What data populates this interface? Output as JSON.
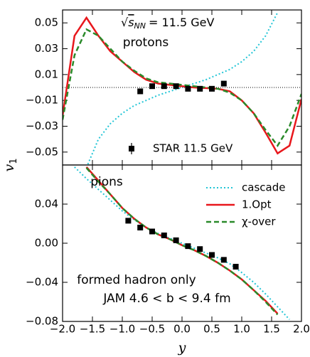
{
  "chart_data": [
    {
      "type": "line",
      "panel_label": "protons",
      "annotation_parts": [
        "√",
        "s",
        "NN",
        "= 11.5 GeV"
      ],
      "ylabel_parts": [
        "v",
        "1"
      ],
      "xlim": [
        -2.0,
        2.0
      ],
      "ylim": [
        -0.06,
        0.06
      ],
      "yticks": [
        0.05,
        0.03,
        0.01,
        {
          "value": -0.01,
          "label": "−0.01"
        },
        {
          "value": -0.03,
          "label": "−0.03"
        },
        {
          "value": -0.05,
          "label": "−0.05"
        }
      ],
      "reference_line": 0,
      "legend": "lower center",
      "series": [
        {
          "style": "dotted",
          "color": "#22c5d6",
          "x": [
            -1.6,
            -1.4,
            -1.2,
            -1.0,
            -0.8,
            -0.6,
            -0.4,
            -0.2,
            0.0,
            0.2,
            0.4,
            0.6,
            0.8,
            1.0,
            1.2,
            1.4,
            1.6
          ],
          "values": [
            -0.062,
            -0.04,
            -0.028,
            -0.02,
            -0.014,
            -0.01,
            -0.006,
            -0.003,
            0.0,
            0.003,
            0.006,
            0.01,
            0.014,
            0.02,
            0.028,
            0.04,
            0.058
          ]
        },
        {
          "style": "solid",
          "color": "#e8171c",
          "x": [
            -2.0,
            -1.8,
            -1.6,
            -1.4,
            -1.2,
            -1.0,
            -0.8,
            -0.6,
            -0.4,
            -0.2,
            0.0,
            0.2,
            0.4,
            0.6,
            0.8,
            1.0,
            1.2,
            1.4,
            1.6,
            1.8,
            2.0
          ],
          "values": [
            -0.022,
            0.04,
            0.054,
            0.04,
            0.028,
            0.02,
            0.012,
            0.006,
            0.003,
            0.002,
            0.001,
            0.0,
            -0.0005,
            -0.001,
            -0.003,
            -0.01,
            -0.02,
            -0.035,
            -0.051,
            -0.045,
            -0.009
          ]
        },
        {
          "style": "dashed",
          "color": "#2a8a2a",
          "x": [
            -2.0,
            -1.8,
            -1.6,
            -1.4,
            -1.2,
            -1.0,
            -0.8,
            -0.6,
            -0.4,
            -0.2,
            0.0,
            0.2,
            0.4,
            0.6,
            0.8,
            1.0,
            1.2,
            1.4,
            1.6,
            1.8,
            2.0
          ],
          "values": [
            -0.025,
            0.025,
            0.045,
            0.04,
            0.03,
            0.02,
            0.013,
            0.007,
            0.004,
            0.003,
            0.002,
            0.001,
            0.0,
            -0.001,
            -0.004,
            -0.01,
            -0.02,
            -0.033,
            -0.045,
            -0.03,
            -0.005
          ]
        },
        {
          "name": "STAR 11.5 GeV",
          "style": "markers",
          "color": "#000000",
          "x": [
            -0.7,
            -0.5,
            -0.3,
            -0.1,
            0.1,
            0.3,
            0.5,
            0.7
          ],
          "values": [
            -0.003,
            0.001,
            0.001,
            0.001,
            -0.001,
            -0.001,
            -0.001,
            0.003
          ]
        }
      ]
    },
    {
      "type": "line",
      "panel_label": "pions",
      "annotations": [
        "formed hadron only",
        "JAM 4.6 < b < 9.4 fm"
      ],
      "xlabel": "y",
      "xlim": [
        -2.0,
        2.0
      ],
      "ylim": [
        -0.08,
        0.08
      ],
      "xticks": [
        {
          "value": -2.0,
          "label": "−2.0"
        },
        {
          "value": -1.5,
          "label": "−1.5"
        },
        {
          "value": -1.0,
          "label": "−1.0"
        },
        {
          "value": -0.5,
          "label": "−0.5"
        },
        {
          "value": 0.0,
          "label": "0.0"
        },
        {
          "value": 0.5,
          "label": "0.5"
        },
        {
          "value": 1.0,
          "label": "1.0"
        },
        {
          "value": 1.5,
          "label": "1.5"
        },
        {
          "value": 2.0,
          "label": "2.0"
        }
      ],
      "yticks": [
        0.04,
        {
          "value": 0.0,
          "label": "0.00"
        },
        {
          "value": -0.04,
          "label": "−0.04"
        },
        {
          "value": -0.08,
          "label": "−0.08"
        }
      ],
      "legend": "upper right",
      "series": [
        {
          "name": "cascade",
          "style": "dotted",
          "color": "#22c5d6",
          "x": [
            -1.8,
            -1.6,
            -1.4,
            -1.2,
            -1.0,
            -0.8,
            -0.6,
            -0.4,
            -0.2,
            0.0,
            0.2,
            0.4,
            0.6,
            0.8,
            1.0,
            1.2,
            1.4,
            1.6,
            1.8
          ],
          "values": [
            0.078,
            0.066,
            0.055,
            0.044,
            0.033,
            0.024,
            0.016,
            0.01,
            0.005,
            0.0,
            -0.005,
            -0.01,
            -0.015,
            -0.021,
            -0.03,
            -0.04,
            -0.052,
            -0.065,
            -0.078
          ]
        },
        {
          "name": "1.Opt",
          "style": "solid",
          "color": "#e8171c",
          "x": [
            -1.6,
            -1.4,
            -1.2,
            -1.0,
            -0.8,
            -0.6,
            -0.4,
            -0.2,
            0.0,
            0.2,
            0.4,
            0.6,
            0.8,
            1.0,
            1.2,
            1.4,
            1.6
          ],
          "values": [
            0.078,
            0.064,
            0.05,
            0.036,
            0.025,
            0.016,
            0.009,
            0.004,
            -0.002,
            -0.007,
            -0.013,
            -0.02,
            -0.028,
            -0.037,
            -0.048,
            -0.059,
            -0.072
          ]
        },
        {
          "name": "χ-over",
          "style": "dashed",
          "color": "#2a8a2a",
          "x": [
            -1.6,
            -1.4,
            -1.2,
            -1.0,
            -0.8,
            -0.6,
            -0.4,
            -0.2,
            0.0,
            0.2,
            0.4,
            0.6,
            0.8,
            1.0,
            1.2,
            1.4,
            1.6
          ],
          "values": [
            0.077,
            0.063,
            0.05,
            0.036,
            0.025,
            0.016,
            0.009,
            0.004,
            -0.002,
            -0.007,
            -0.013,
            -0.02,
            -0.028,
            -0.037,
            -0.048,
            -0.06,
            -0.073
          ]
        },
        {
          "style": "markers",
          "color": "#000000",
          "x": [
            -0.9,
            -0.7,
            -0.5,
            -0.3,
            -0.1,
            0.1,
            0.3,
            0.5,
            0.7,
            0.9
          ],
          "values": [
            0.023,
            0.016,
            0.012,
            0.008,
            0.003,
            -0.003,
            -0.006,
            -0.012,
            -0.017,
            -0.024
          ]
        }
      ]
    }
  ]
}
